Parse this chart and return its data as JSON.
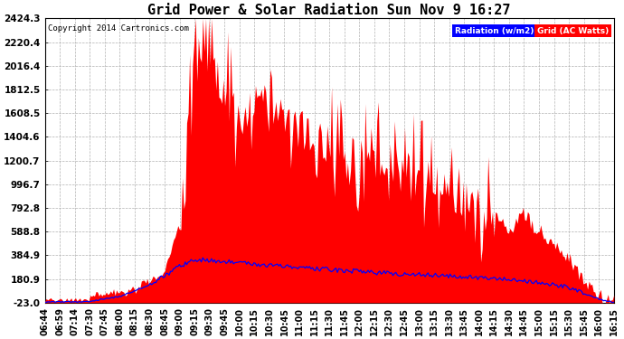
{
  "title": "Grid Power & Solar Radiation Sun Nov 9 16:27",
  "copyright": "Copyright 2014 Cartronics.com",
  "ylim": [
    -23.0,
    2424.3
  ],
  "yticks": [
    -23.0,
    180.9,
    384.9,
    588.8,
    792.8,
    996.7,
    1200.7,
    1404.6,
    1608.5,
    1812.5,
    2016.4,
    2220.4,
    2424.3
  ],
  "legend_radiation_label": "Radiation (w/m2)",
  "legend_grid_label": "Grid (AC Watts)",
  "legend_radiation_color": "#0000ff",
  "legend_grid_color": "#ff0000",
  "background_color": "#ffffff",
  "grid_color": "#aaaaaa",
  "title_fontsize": 11,
  "tick_fontsize": 7,
  "ytick_fontsize": 7.5,
  "xtick_labels": [
    "06:44",
    "06:59",
    "07:14",
    "07:30",
    "07:45",
    "08:00",
    "08:15",
    "08:30",
    "08:45",
    "09:00",
    "09:15",
    "09:30",
    "09:45",
    "10:00",
    "10:15",
    "10:30",
    "10:45",
    "11:00",
    "11:15",
    "11:30",
    "11:45",
    "12:00",
    "12:15",
    "12:30",
    "12:45",
    "13:00",
    "13:15",
    "13:30",
    "13:45",
    "14:00",
    "14:15",
    "14:30",
    "14:45",
    "15:00",
    "15:15",
    "15:30",
    "15:45",
    "16:00",
    "16:15"
  ]
}
